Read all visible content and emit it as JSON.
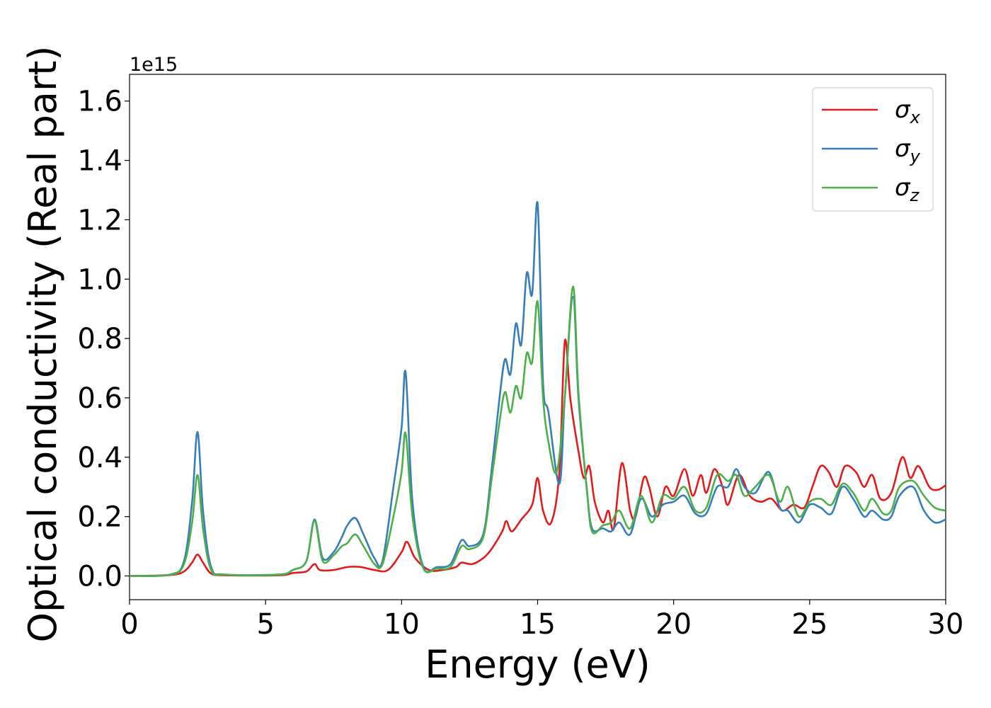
{
  "chart_data": {
    "type": "line",
    "title": "",
    "xlabel": "Energy (eV)",
    "ylabel": "Optical conductivity (Real part)",
    "y_offset_label": "1e15",
    "xlim": [
      0,
      30
    ],
    "ylim": [
      -0.08,
      1.69
    ],
    "x_ticks": [
      0,
      5,
      10,
      15,
      20,
      25,
      30
    ],
    "x_tick_labels": [
      "0",
      "5",
      "10",
      "15",
      "20",
      "25",
      "30"
    ],
    "y_ticks": [
      0.0,
      0.2,
      0.4,
      0.6,
      0.8,
      1.0,
      1.2,
      1.4,
      1.6
    ],
    "y_tick_labels": [
      "0.0",
      "0.2",
      "0.4",
      "0.6",
      "0.8",
      "1.0",
      "1.2",
      "1.4",
      "1.6"
    ],
    "grid": false,
    "legend_position": "top-right",
    "series": [
      {
        "name": "σx",
        "legend_symbol": "σ",
        "legend_subscript": "x",
        "color": "#e41a1c",
        "points": [
          [
            0,
            0
          ],
          [
            1.5,
            0.003
          ],
          [
            2.0,
            0.015
          ],
          [
            2.3,
            0.045
          ],
          [
            2.5,
            0.072
          ],
          [
            2.7,
            0.045
          ],
          [
            3.0,
            0.008
          ],
          [
            3.5,
            0.002
          ],
          [
            5.5,
            0.002
          ],
          [
            6.0,
            0.01
          ],
          [
            6.5,
            0.015
          ],
          [
            6.8,
            0.04
          ],
          [
            7.0,
            0.02
          ],
          [
            7.5,
            0.02
          ],
          [
            8.0,
            0.03
          ],
          [
            8.5,
            0.03
          ],
          [
            9.0,
            0.02
          ],
          [
            9.5,
            0.02
          ],
          [
            10.0,
            0.08
          ],
          [
            10.2,
            0.115
          ],
          [
            10.5,
            0.06
          ],
          [
            11.0,
            0.02
          ],
          [
            11.5,
            0.02
          ],
          [
            12.0,
            0.03
          ],
          [
            12.2,
            0.045
          ],
          [
            12.6,
            0.04
          ],
          [
            13.0,
            0.06
          ],
          [
            13.3,
            0.09
          ],
          [
            13.7,
            0.15
          ],
          [
            13.85,
            0.185
          ],
          [
            14.05,
            0.15
          ],
          [
            14.4,
            0.19
          ],
          [
            14.8,
            0.24
          ],
          [
            15.0,
            0.33
          ],
          [
            15.2,
            0.22
          ],
          [
            15.5,
            0.18
          ],
          [
            15.8,
            0.35
          ],
          [
            16.0,
            0.79
          ],
          [
            16.2,
            0.6
          ],
          [
            16.5,
            0.42
          ],
          [
            16.7,
            0.33
          ],
          [
            16.9,
            0.37
          ],
          [
            17.1,
            0.25
          ],
          [
            17.4,
            0.18
          ],
          [
            17.6,
            0.22
          ],
          [
            17.8,
            0.16
          ],
          [
            18.1,
            0.38
          ],
          [
            18.4,
            0.22
          ],
          [
            18.6,
            0.2
          ],
          [
            18.9,
            0.33
          ],
          [
            19.1,
            0.3
          ],
          [
            19.4,
            0.2
          ],
          [
            19.7,
            0.3
          ],
          [
            20.0,
            0.27
          ],
          [
            20.4,
            0.36
          ],
          [
            20.7,
            0.27
          ],
          [
            21.0,
            0.34
          ],
          [
            21.2,
            0.28
          ],
          [
            21.5,
            0.36
          ],
          [
            21.8,
            0.3
          ],
          [
            22.0,
            0.24
          ],
          [
            22.4,
            0.34
          ],
          [
            22.8,
            0.27
          ],
          [
            23.2,
            0.25
          ],
          [
            23.6,
            0.26
          ],
          [
            24.0,
            0.22
          ],
          [
            24.4,
            0.24
          ],
          [
            24.8,
            0.23
          ],
          [
            25.1,
            0.3
          ],
          [
            25.4,
            0.37
          ],
          [
            25.7,
            0.35
          ],
          [
            26.0,
            0.3
          ],
          [
            26.3,
            0.37
          ],
          [
            26.7,
            0.35
          ],
          [
            27.0,
            0.3
          ],
          [
            27.3,
            0.34
          ],
          [
            27.6,
            0.26
          ],
          [
            28.0,
            0.28
          ],
          [
            28.4,
            0.4
          ],
          [
            28.7,
            0.33
          ],
          [
            29.0,
            0.37
          ],
          [
            29.4,
            0.3
          ],
          [
            29.7,
            0.29
          ],
          [
            30.0,
            0.305
          ]
        ]
      },
      {
        "name": "σy",
        "legend_symbol": "σ",
        "legend_subscript": "y",
        "color": "#377eb8",
        "points": [
          [
            0,
            0
          ],
          [
            1.5,
            0.005
          ],
          [
            2.0,
            0.05
          ],
          [
            2.3,
            0.25
          ],
          [
            2.5,
            0.485
          ],
          [
            2.7,
            0.22
          ],
          [
            3.0,
            0.03
          ],
          [
            3.5,
            0.005
          ],
          [
            5.5,
            0.005
          ],
          [
            6.0,
            0.02
          ],
          [
            6.5,
            0.05
          ],
          [
            6.8,
            0.19
          ],
          [
            7.1,
            0.06
          ],
          [
            7.5,
            0.08
          ],
          [
            7.8,
            0.13
          ],
          [
            8.0,
            0.17
          ],
          [
            8.3,
            0.195
          ],
          [
            8.6,
            0.14
          ],
          [
            9.0,
            0.06
          ],
          [
            9.3,
            0.05
          ],
          [
            9.7,
            0.3
          ],
          [
            10.0,
            0.5
          ],
          [
            10.15,
            0.685
          ],
          [
            10.4,
            0.25
          ],
          [
            10.8,
            0.03
          ],
          [
            11.3,
            0.03
          ],
          [
            11.8,
            0.04
          ],
          [
            12.2,
            0.12
          ],
          [
            12.5,
            0.1
          ],
          [
            13.0,
            0.14
          ],
          [
            13.3,
            0.35
          ],
          [
            13.6,
            0.6
          ],
          [
            13.8,
            0.73
          ],
          [
            14.0,
            0.68
          ],
          [
            14.2,
            0.85
          ],
          [
            14.4,
            0.78
          ],
          [
            14.6,
            1.02
          ],
          [
            14.8,
            0.95
          ],
          [
            15.0,
            1.255
          ],
          [
            15.2,
            0.65
          ],
          [
            15.4,
            0.55
          ],
          [
            15.8,
            0.31
          ],
          [
            16.0,
            0.6
          ],
          [
            16.3,
            0.94
          ],
          [
            16.5,
            0.6
          ],
          [
            16.8,
            0.3
          ],
          [
            17.0,
            0.16
          ],
          [
            17.4,
            0.16
          ],
          [
            17.7,
            0.15
          ],
          [
            18.0,
            0.18
          ],
          [
            18.4,
            0.14
          ],
          [
            18.8,
            0.26
          ],
          [
            19.2,
            0.2
          ],
          [
            19.6,
            0.24
          ],
          [
            20.0,
            0.25
          ],
          [
            20.4,
            0.27
          ],
          [
            20.8,
            0.21
          ],
          [
            21.2,
            0.21
          ],
          [
            21.6,
            0.3
          ],
          [
            22.0,
            0.3
          ],
          [
            22.3,
            0.36
          ],
          [
            22.6,
            0.3
          ],
          [
            23.0,
            0.28
          ],
          [
            23.5,
            0.35
          ],
          [
            23.9,
            0.23
          ],
          [
            24.2,
            0.22
          ],
          [
            24.6,
            0.18
          ],
          [
            25.0,
            0.24
          ],
          [
            25.4,
            0.23
          ],
          [
            25.8,
            0.21
          ],
          [
            26.2,
            0.3
          ],
          [
            26.6,
            0.26
          ],
          [
            27.0,
            0.2
          ],
          [
            27.3,
            0.22
          ],
          [
            27.7,
            0.19
          ],
          [
            28.0,
            0.2
          ],
          [
            28.3,
            0.27
          ],
          [
            28.8,
            0.3
          ],
          [
            29.2,
            0.22
          ],
          [
            29.6,
            0.18
          ],
          [
            30.0,
            0.19
          ]
        ]
      },
      {
        "name": "σz",
        "legend_symbol": "σ",
        "legend_subscript": "z",
        "color": "#4daf4a",
        "points": [
          [
            0,
            0
          ],
          [
            1.5,
            0.004
          ],
          [
            2.0,
            0.04
          ],
          [
            2.3,
            0.18
          ],
          [
            2.5,
            0.34
          ],
          [
            2.7,
            0.16
          ],
          [
            3.0,
            0.02
          ],
          [
            3.5,
            0.004
          ],
          [
            5.5,
            0.004
          ],
          [
            6.0,
            0.02
          ],
          [
            6.5,
            0.05
          ],
          [
            6.8,
            0.185
          ],
          [
            7.1,
            0.05
          ],
          [
            7.5,
            0.07
          ],
          [
            7.8,
            0.1
          ],
          [
            8.0,
            0.11
          ],
          [
            8.3,
            0.14
          ],
          [
            8.6,
            0.1
          ],
          [
            9.0,
            0.04
          ],
          [
            9.3,
            0.04
          ],
          [
            9.7,
            0.2
          ],
          [
            10.0,
            0.35
          ],
          [
            10.15,
            0.48
          ],
          [
            10.4,
            0.2
          ],
          [
            10.8,
            0.025
          ],
          [
            11.3,
            0.025
          ],
          [
            11.8,
            0.03
          ],
          [
            12.2,
            0.1
          ],
          [
            12.5,
            0.09
          ],
          [
            13.0,
            0.13
          ],
          [
            13.3,
            0.32
          ],
          [
            13.6,
            0.52
          ],
          [
            13.8,
            0.62
          ],
          [
            14.0,
            0.55
          ],
          [
            14.2,
            0.64
          ],
          [
            14.4,
            0.6
          ],
          [
            14.6,
            0.75
          ],
          [
            14.8,
            0.72
          ],
          [
            15.0,
            0.925
          ],
          [
            15.2,
            0.6
          ],
          [
            15.4,
            0.45
          ],
          [
            15.7,
            0.35
          ],
          [
            16.0,
            0.6
          ],
          [
            16.3,
            0.975
          ],
          [
            16.5,
            0.62
          ],
          [
            16.8,
            0.3
          ],
          [
            17.0,
            0.15
          ],
          [
            17.4,
            0.17
          ],
          [
            17.7,
            0.18
          ],
          [
            18.0,
            0.22
          ],
          [
            18.4,
            0.16
          ],
          [
            18.8,
            0.27
          ],
          [
            19.2,
            0.18
          ],
          [
            19.6,
            0.27
          ],
          [
            20.0,
            0.26
          ],
          [
            20.4,
            0.3
          ],
          [
            20.8,
            0.22
          ],
          [
            21.2,
            0.23
          ],
          [
            21.6,
            0.34
          ],
          [
            22.0,
            0.32
          ],
          [
            22.3,
            0.34
          ],
          [
            22.6,
            0.27
          ],
          [
            23.0,
            0.3
          ],
          [
            23.5,
            0.34
          ],
          [
            23.9,
            0.25
          ],
          [
            24.2,
            0.3
          ],
          [
            24.6,
            0.2
          ],
          [
            25.0,
            0.25
          ],
          [
            25.4,
            0.26
          ],
          [
            25.8,
            0.24
          ],
          [
            26.2,
            0.31
          ],
          [
            26.6,
            0.28
          ],
          [
            27.0,
            0.22
          ],
          [
            27.3,
            0.26
          ],
          [
            27.7,
            0.21
          ],
          [
            28.0,
            0.22
          ],
          [
            28.3,
            0.3
          ],
          [
            28.8,
            0.32
          ],
          [
            29.2,
            0.27
          ],
          [
            29.6,
            0.23
          ],
          [
            30.0,
            0.22
          ]
        ]
      }
    ]
  }
}
